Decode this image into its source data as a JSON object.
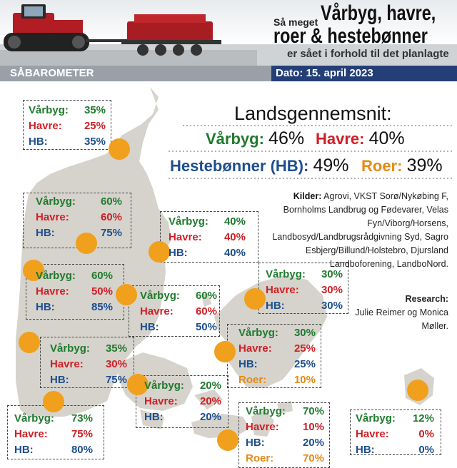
{
  "header": {
    "kicker": "Så meget",
    "title_line1": "Vårbyg, havre,",
    "title_line2": "roer & hestebønner",
    "subtitle": "er sået i forhold til det planlagte",
    "section": "SÅBAROMETER",
    "date": "Dato: 15. april 2023"
  },
  "national": {
    "title": "Landsgennemsnit:",
    "varbyg_label": "Vårbyg:",
    "varbyg_value": "46%",
    "havre_label": "Havre:",
    "havre_value": "40%",
    "hb_label": "Hestebønner (HB):",
    "hb_value": "49%",
    "roer_label": "Roer:",
    "roer_value": "39%"
  },
  "sources": {
    "label": "Kilder:",
    "text": "Agrovi, VKST Sorø/Nykøbing F, Bornholms Landbrug og Fødevarer, Velas Fyn/Viborg/Horsens, Landbosyd/Landbrugsrådgivning Syd, Sagro Esbjerg/Billund/Holstebro, Djursland Landboforening, LandboNord."
  },
  "research": {
    "label": "Research:",
    "text": "Julie Reimer og Monica Møller."
  },
  "regions": [
    {
      "varbyg": "Vårbyg:",
      "varbyg_value": "35%",
      "havre": "Havre:",
      "havre_value": "25%",
      "hb": "HB:",
      "hb_value": "35%"
    },
    {
      "varbyg": "Vårbyg:",
      "varbyg_value": "60%",
      "havre": "Havre:",
      "havre_value": "60%",
      "hb": "HB:",
      "hb_value": "75%"
    },
    {
      "varbyg": "Vårbyg:",
      "varbyg_value": "40%",
      "havre": "Havre:",
      "havre_value": "40%",
      "hb": "HB:",
      "hb_value": "40%"
    },
    {
      "varbyg": "Vårbyg:",
      "varbyg_value": "60%",
      "havre": "Havre:",
      "havre_value": "50%",
      "hb": "HB:",
      "hb_value": "85%"
    },
    {
      "varbyg": "Vårbyg:",
      "varbyg_value": "60%",
      "havre": "Havre:",
      "havre_value": "60%",
      "hb": "HB:",
      "hb_value": "50%"
    },
    {
      "varbyg": "Vårbyg:",
      "varbyg_value": "30%",
      "havre": "Havre:",
      "havre_value": "30%",
      "hb": "HB:",
      "hb_value": "30%"
    },
    {
      "varbyg": "Vårbyg:",
      "varbyg_value": "30%",
      "havre": "Havre:",
      "havre_value": "25%",
      "hb": "HB:",
      "hb_value": "25%",
      "roer": "Roer:",
      "roer_value": "10%"
    },
    {
      "varbyg": "Vårbyg:",
      "varbyg_value": "35%",
      "havre": "Havre:",
      "havre_value": "30%",
      "hb": "HB:",
      "hb_value": "75%"
    },
    {
      "varbyg": "Vårbyg:",
      "varbyg_value": "20%",
      "havre": "Havre:",
      "havre_value": "20%",
      "hb": "HB:",
      "hb_value": "20%"
    },
    {
      "varbyg": "Vårbyg:",
      "varbyg_value": "73%",
      "havre": "Havre:",
      "havre_value": "75%",
      "hb": "HB:",
      "hb_value": "80%"
    },
    {
      "varbyg": "Vårbyg:",
      "varbyg_value": "70%",
      "havre": "Havre:",
      "havre_value": "10%",
      "hb": "HB:",
      "hb_value": "20%",
      "roer": "Roer:",
      "roer_value": "70%"
    },
    {
      "varbyg": "Vårbyg:",
      "varbyg_value": "12%",
      "havre": "Havre:",
      "havre_value": "0%",
      "hb": "HB:",
      "hb_value": "0%"
    }
  ],
  "colors": {
    "varbyg": "#1f7a2e",
    "havre": "#d01f26",
    "hb": "#1d4e8f",
    "roer": "#e58a12",
    "marker": "#f0a01c",
    "map": "#d6d3cc",
    "bar": "#243f78"
  },
  "icons": [
    "tractor-illustration",
    "seed-drill-illustration",
    "map-of-denmark"
  ]
}
